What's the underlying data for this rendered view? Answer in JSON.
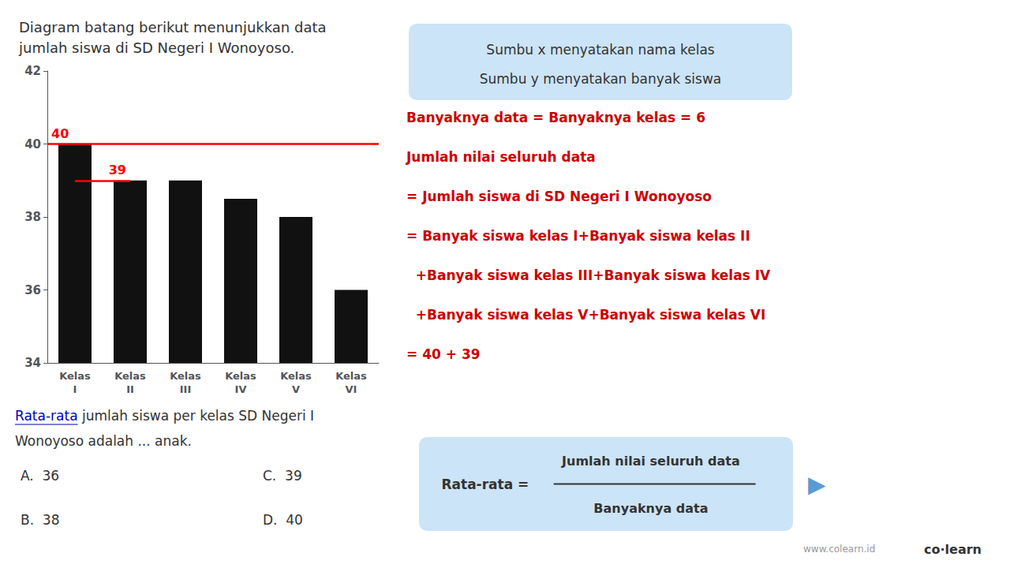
{
  "chart_data": {
    "type": "bar",
    "title": "Diagram batang berikut menunjukkan data\njumlah siswa di SD Negeri I Wonoyoso.",
    "categories": [
      "Kelas\nI",
      "Kelas\nII",
      "Kelas\nIII",
      "Kelas\nIV",
      "Kelas\nV",
      "Kelas\nVI"
    ],
    "values": [
      40,
      39,
      39,
      38.5,
      38,
      36
    ],
    "color": "#111111",
    "ylim": [
      34,
      42
    ],
    "yticks": [
      34,
      36,
      38,
      40,
      42
    ],
    "grid": false,
    "annotations": [
      {
        "text": "40",
        "y": 40,
        "color": "#ff0000"
      },
      {
        "text": "39",
        "y": 39,
        "x_end": "Kelas\nII",
        "color": "#ff0000"
      }
    ],
    "callout": {
      "color": "#cce4f7",
      "lines": [
        "Sumbu x menyatakan nama kelas",
        "Sumbu y menyatakan banyak siswa"
      ]
    },
    "side_text": {
      "color": "#cc0000",
      "lines": [
        "Banyaknya data = Banyaknya kelas = 6",
        "Jumlah nilai seluruh data",
        "= Jumlah siswa di SD Negeri I Wonoyoso",
        "= Banyak siswa kelas I+Banyak siswa kelas II",
        "  +Banyak siswa kelas III+Banyak siswa kelas IV",
        "  +Banyak siswa kelas V+Banyak siswa kelas VI",
        "= 40 + 39"
      ]
    },
    "question": {
      "lines": [
        "Rata-rata jumlah siswa per kelas SD Negeri I",
        "Wonoyoso adalah ... anak."
      ],
      "highlight": "Rata-rata",
      "highlight_color": "#0000bb"
    },
    "answers": [
      "A.  36",
      "C.  39",
      "B.  38",
      "D.  40"
    ],
    "formula": {
      "color": "#cce4f7",
      "label": "Rata-rata =",
      "numerator": "Jumlah nilai seluruh data",
      "denominator": "Banyaknya data"
    },
    "arrow": {
      "text": "▶",
      "color": "#5b9bd5"
    },
    "footer": [
      "www.colearn.id",
      "co·learn"
    ]
  }
}
